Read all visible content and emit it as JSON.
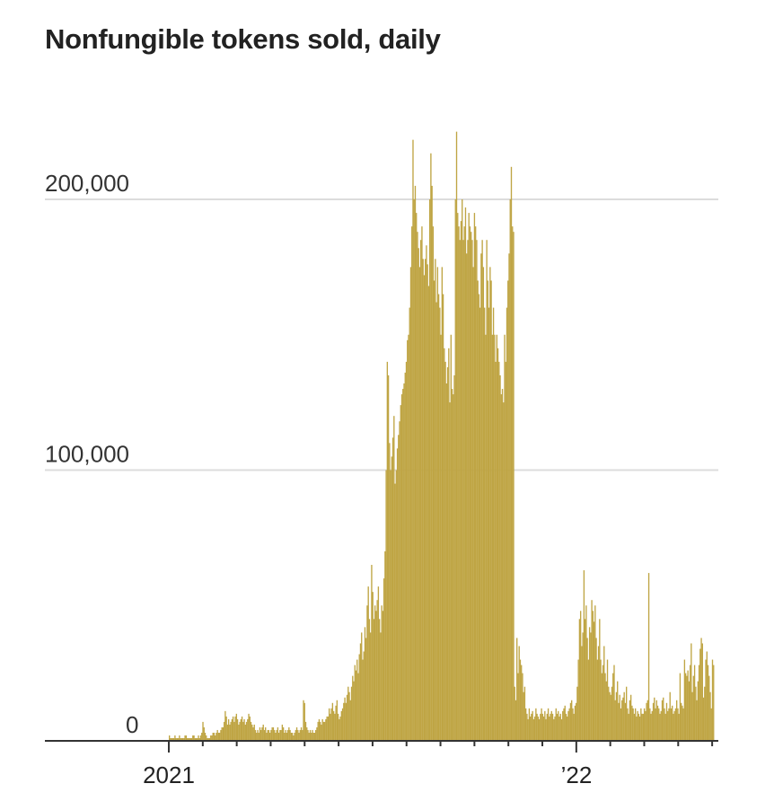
{
  "chart_data": {
    "type": "bar",
    "title": "Nonfungible tokens sold, daily",
    "xlabel": "",
    "ylabel": "",
    "ylim": [
      0,
      230000
    ],
    "y_ticks": [
      {
        "value": 0,
        "label": "0"
      },
      {
        "value": 100000,
        "label": "100,000"
      },
      {
        "value": 200000,
        "label": "200,000"
      }
    ],
    "x_tick_labels": [
      "2021",
      "’22"
    ],
    "x_tick_interval": "monthly",
    "grid": true,
    "bar_color": "#bfa544",
    "values": [
      2000,
      1000,
      1000,
      1000,
      1000,
      2000,
      1000,
      1000,
      1000,
      2000,
      1000,
      1000,
      1000,
      1000,
      2000,
      2000,
      1000,
      1000,
      1000,
      1000,
      1000,
      2000,
      2000,
      1000,
      1000,
      1000,
      2000,
      1000,
      2000,
      3000,
      7000,
      5000,
      3000,
      2000,
      1000,
      1000,
      1000,
      2000,
      2000,
      3000,
      3000,
      2000,
      3000,
      4000,
      3000,
      3000,
      4000,
      5000,
      5000,
      7000,
      11000,
      9000,
      6000,
      8000,
      6000,
      7000,
      8000,
      9000,
      7000,
      9000,
      10000,
      8000,
      6000,
      7000,
      8000,
      9000,
      7000,
      8000,
      6000,
      7000,
      8000,
      10000,
      9000,
      7000,
      6000,
      5000,
      6000,
      4000,
      3000,
      4000,
      3000,
      5000,
      4000,
      5000,
      6000,
      4000,
      5000,
      3000,
      4000,
      4000,
      3000,
      4000,
      5000,
      5000,
      4000,
      3000,
      4000,
      5000,
      3000,
      4000,
      4000,
      6000,
      5000,
      3000,
      4000,
      3000,
      4000,
      5000,
      4000,
      3000,
      3000,
      2000,
      3000,
      4000,
      5000,
      4000,
      3000,
      4000,
      5000,
      4000,
      15000,
      14000,
      7000,
      5000,
      4000,
      3000,
      4000,
      3000,
      4000,
      3000,
      3000,
      4000,
      5000,
      7000,
      8000,
      7000,
      6000,
      8000,
      7000,
      7000,
      8000,
      9000,
      9000,
      12000,
      10000,
      12000,
      14000,
      11000,
      10000,
      13000,
      15000,
      10000,
      8000,
      9000,
      11000,
      12000,
      14000,
      16000,
      14000,
      17000,
      20000,
      18000,
      15000,
      20000,
      24000,
      22000,
      28000,
      26000,
      30000,
      25000,
      32000,
      36000,
      40000,
      30000,
      33000,
      42000,
      38000,
      50000,
      57000,
      45000,
      40000,
      65000,
      55000,
      45000,
      50000,
      48000,
      52000,
      57000,
      45000,
      40000,
      50000,
      48000,
      60000,
      70000,
      100000,
      140000,
      135000,
      110000,
      100000,
      105000,
      112000,
      120000,
      95000,
      100000,
      108000,
      113000,
      118000,
      124000,
      128000,
      130000,
      132000,
      136000,
      140000,
      148000,
      150000,
      160000,
      175000,
      190000,
      222000,
      200000,
      205000,
      195000,
      188000,
      182000,
      175000,
      185000,
      190000,
      178000,
      172000,
      178000,
      183000,
      176000,
      168000,
      200000,
      217000,
      205000,
      190000,
      170000,
      178000,
      162000,
      175000,
      165000,
      160000,
      150000,
      175000,
      165000,
      145000,
      140000,
      132000,
      138000,
      145000,
      125000,
      150000,
      130000,
      128000,
      135000,
      200000,
      225000,
      195000,
      190000,
      185000,
      192000,
      200000,
      185000,
      190000,
      197000,
      180000,
      185000,
      195000,
      190000,
      188000,
      185000,
      175000,
      195000,
      190000,
      185000,
      170000,
      165000,
      160000,
      180000,
      185000,
      175000,
      160000,
      150000,
      185000,
      170000,
      160000,
      175000,
      170000,
      150000,
      160000,
      150000,
      140000,
      150000,
      145000,
      140000,
      135000,
      128000,
      130000,
      125000,
      150000,
      140000,
      160000,
      170000,
      180000,
      200000,
      212000,
      190000,
      188000,
      20000,
      15000,
      38000,
      25000,
      35000,
      30000,
      28000,
      25000,
      18000,
      20000,
      12000,
      10000,
      8000,
      12000,
      9000,
      10000,
      11000,
      8000,
      9000,
      12000,
      10000,
      9000,
      8000,
      10000,
      12000,
      10000,
      9000,
      11000,
      8000,
      10000,
      12000,
      9000,
      10000,
      11000,
      10000,
      8000,
      9000,
      12000,
      10000,
      11000,
      9000,
      10000,
      8000,
      11000,
      12000,
      13000,
      10000,
      9000,
      11000,
      12000,
      14000,
      15000,
      12000,
      10000,
      13000,
      14000,
      20000,
      30000,
      45000,
      48000,
      35000,
      40000,
      63000,
      45000,
      50000,
      38000,
      30000,
      42000,
      40000,
      52000,
      48000,
      44000,
      50000,
      38000,
      30000,
      35000,
      45000,
      30000,
      25000,
      28000,
      35000,
      25000,
      22000,
      30000,
      20000,
      18000,
      17000,
      20000,
      25000,
      28000,
      15000,
      18000,
      22000,
      14000,
      17000,
      12000,
      15000,
      16000,
      18000,
      14000,
      20000,
      12000,
      10000,
      15000,
      17000,
      13000,
      12000,
      10000,
      12000,
      9000,
      11000,
      10000,
      9000,
      12000,
      10000,
      10000,
      12000,
      11000,
      14000,
      15000,
      62000,
      12000,
      10000,
      11000,
      14000,
      16000,
      12000,
      15000,
      13000,
      12000,
      10000,
      11000,
      15000,
      16000,
      12000,
      10000,
      14000,
      11000,
      12000,
      18000,
      12000,
      13000,
      10000,
      11000,
      12000,
      15000,
      12000,
      10000,
      25000,
      14000,
      13000,
      12000,
      30000,
      25000,
      24000,
      26000,
      22000,
      28000,
      36000,
      18000,
      24000,
      28000,
      20000,
      15000,
      22000,
      28000,
      34000,
      38000,
      36000,
      16000,
      20000,
      30000,
      33000,
      28000,
      24000,
      18000,
      12000,
      30000,
      28000
    ]
  }
}
